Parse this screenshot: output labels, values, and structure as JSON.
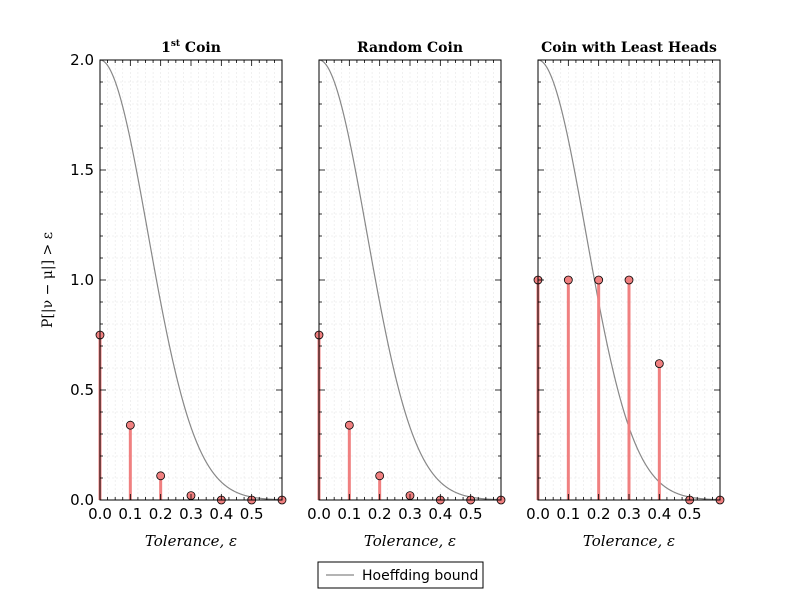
{
  "chart_data": [
    {
      "type": "line",
      "title": "1st Coin",
      "xlabel": "Tolerance, ε",
      "ylabel": "P[|ν − μ|] > ε",
      "xlim": [
        0,
        0.6
      ],
      "ylim": [
        0,
        2.0
      ],
      "xticks": [
        "0.0",
        "0.1",
        "0.2",
        "0.3",
        "0.4",
        "0.5"
      ],
      "yticks": [
        "0.0",
        "0.5",
        "1.0",
        "1.5",
        "2.0"
      ],
      "grid": true,
      "series": [
        {
          "name": "Hoeffding bound",
          "kind": "line",
          "color": "#888888",
          "function": "2*exp(-20*x^2)"
        },
        {
          "kind": "stem",
          "color": "#f08080",
          "x": [
            0.0,
            0.1,
            0.2,
            0.3,
            0.4,
            0.5,
            0.6
          ],
          "y": [
            0.75,
            0.34,
            0.11,
            0.02,
            0.0,
            0.0,
            0.0
          ]
        }
      ]
    },
    {
      "type": "line",
      "title": "Random Coin",
      "xlabel": "Tolerance, ε",
      "ylabel": "",
      "xlim": [
        0,
        0.6
      ],
      "ylim": [
        0,
        2.0
      ],
      "xticks": [
        "0.0",
        "0.1",
        "0.2",
        "0.3",
        "0.4",
        "0.5"
      ],
      "grid": true,
      "series": [
        {
          "name": "Hoeffding bound",
          "kind": "line",
          "color": "#888888",
          "function": "2*exp(-20*x^2)"
        },
        {
          "kind": "stem",
          "color": "#f08080",
          "x": [
            0.0,
            0.1,
            0.2,
            0.3,
            0.4,
            0.5,
            0.6
          ],
          "y": [
            0.75,
            0.34,
            0.11,
            0.02,
            0.0,
            0.0,
            0.0
          ]
        }
      ]
    },
    {
      "type": "line",
      "title": "Coin with Least Heads",
      "xlabel": "Tolerance, ε",
      "ylabel": "",
      "xlim": [
        0,
        0.6
      ],
      "ylim": [
        0,
        2.0
      ],
      "xticks": [
        "0.0",
        "0.1",
        "0.2",
        "0.3",
        "0.4",
        "0.5"
      ],
      "grid": true,
      "series": [
        {
          "name": "Hoeffding bound",
          "kind": "line",
          "color": "#888888",
          "function": "2*exp(-20*x^2)"
        },
        {
          "kind": "stem",
          "color": "#f08080",
          "x": [
            0.0,
            0.1,
            0.2,
            0.3,
            0.4,
            0.5,
            0.6
          ],
          "y": [
            1.0,
            1.0,
            1.0,
            1.0,
            0.62,
            0.0,
            0.0
          ]
        }
      ]
    }
  ],
  "legend": {
    "label": "Hoeffding bound",
    "placement": "bottom-center"
  }
}
